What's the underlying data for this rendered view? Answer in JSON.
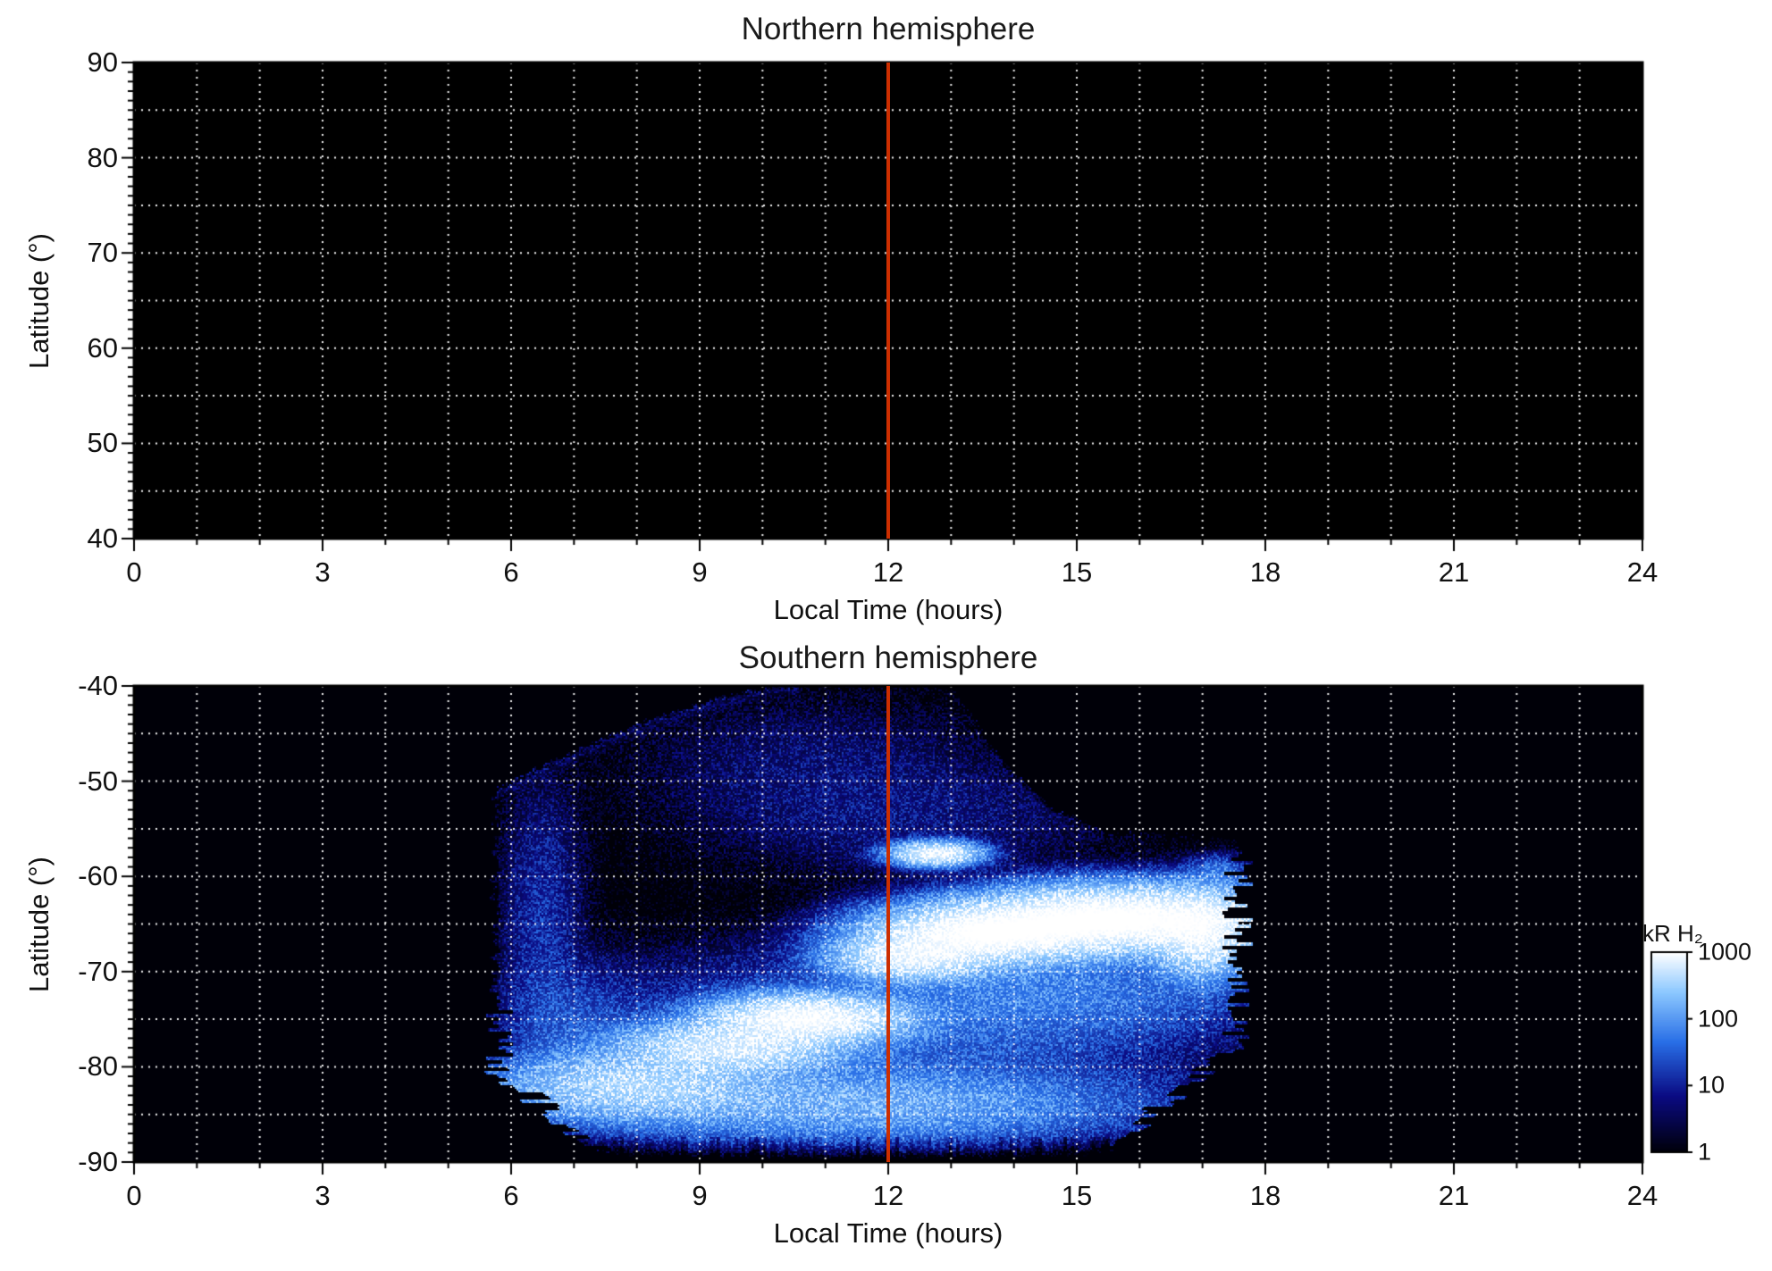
{
  "figure": {
    "background": "#ffffff",
    "panel_bg": "#000000",
    "grid_color": "#ffffff",
    "frame_color": "#000000",
    "marker_line_color": "#cc2e00",
    "text_color": "#111111"
  },
  "chart_data": [
    {
      "type": "heatmap",
      "title": "Northern hemisphere",
      "xlabel": "Local Time (hours)",
      "ylabel": "Latitude (°)",
      "xlim": [
        0,
        24
      ],
      "ylim": [
        40,
        90
      ],
      "xticks": [
        0,
        3,
        6,
        9,
        12,
        15,
        18,
        21,
        24
      ],
      "yticks": [
        40,
        50,
        60,
        70,
        80,
        90
      ],
      "x_minor_step": 1,
      "y_minor_step": 1,
      "grid": {
        "x_step": 1,
        "y_step": 5,
        "style": "dotted"
      },
      "marker_line": {
        "x": 12
      },
      "value_units": "kR H₂",
      "note": "No emission detected; entire panel at background level below 1 kR"
    },
    {
      "type": "heatmap",
      "title": "Southern hemisphere",
      "xlabel": "Local Time (hours)",
      "ylabel": "Latitude (°)",
      "xlim": [
        0,
        24
      ],
      "ylim": [
        -90,
        -40
      ],
      "xticks": [
        0,
        3,
        6,
        9,
        12,
        15,
        18,
        21,
        24
      ],
      "yticks": [
        -90,
        -80,
        -70,
        -60,
        -50,
        -40
      ],
      "x_minor_step": 1,
      "y_minor_step": 1,
      "grid": {
        "x_step": 1,
        "y_step": 5,
        "style": "dotted"
      },
      "marker_line": {
        "x": 12
      },
      "value_units": "kR H₂",
      "coverage": {
        "t_min": 5.75,
        "t_max": 17.55,
        "bottom": -90,
        "upper_boundary": [
          [
            5.75,
            -51
          ],
          [
            6.5,
            -48.5
          ],
          [
            7.5,
            -45.5
          ],
          [
            8.5,
            -43
          ],
          [
            9.5,
            -41
          ],
          [
            10.2,
            -40
          ],
          [
            13.0,
            -40
          ],
          [
            13.8,
            -48
          ],
          [
            14.6,
            -53
          ],
          [
            15.5,
            -55.5
          ],
          [
            17.55,
            -56
          ]
        ]
      },
      "features": [
        {
          "name": "dawn-band",
          "x": 6.5,
          "y": -65,
          "sx": 0.5,
          "sy": 11,
          "peak": 20
        },
        {
          "name": "dawn-haze",
          "x": 7.0,
          "y": -76,
          "sx": 0.9,
          "sy": 5,
          "peak": 35
        },
        {
          "name": "diffuse-core",
          "x": 12.0,
          "y": -76,
          "sx": 3.5,
          "sy": 6,
          "peak": 55
        },
        {
          "name": "dusk-haze",
          "x": 14.6,
          "y": -72,
          "sx": 2.4,
          "sy": 4,
          "peak": 90
        },
        {
          "name": "polar-haze",
          "x": 11.5,
          "y": -84,
          "sx": 3.2,
          "sy": 3,
          "peak": 250
        },
        {
          "name": "morning-arc-tail",
          "x": 8.0,
          "y": -82,
          "sx": 1.6,
          "sy": 2.6,
          "peak": 700
        },
        {
          "name": "morning-arc-mid",
          "x": 9.5,
          "y": -78,
          "sx": 1.3,
          "sy": 2.0,
          "peak": 1200
        },
        {
          "name": "morning-arc-head",
          "x": 10.7,
          "y": -75,
          "sx": 1.1,
          "sy": 1.8,
          "peak": 2200
        },
        {
          "name": "main-oval-west",
          "x": 12.4,
          "y": -68.5,
          "sx": 0.9,
          "sy": 1.8,
          "peak": 1500
        },
        {
          "name": "main-oval-center",
          "x": 13.6,
          "y": -66,
          "sx": 1.3,
          "sy": 2.2,
          "peak": 2600
        },
        {
          "name": "main-oval-east",
          "x": 15.6,
          "y": -64.5,
          "sx": 1.6,
          "sy": 2.4,
          "peak": 3000
        },
        {
          "name": "main-oval-edge",
          "x": 17.0,
          "y": -66,
          "sx": 0.6,
          "sy": 3.2,
          "peak": 1400
        },
        {
          "name": "detached-spot",
          "x": 12.75,
          "y": -57.6,
          "sx": 0.5,
          "sy": 0.9,
          "peak": 1600
        },
        {
          "name": "upper-speckle",
          "x": 10.8,
          "y": -48,
          "sx": 2.3,
          "sy": 5.5,
          "peak": 7
        },
        {
          "name": "mid-speckle",
          "x": 12.3,
          "y": -54,
          "sx": 2.6,
          "sy": 5,
          "peak": 9
        },
        {
          "name": "east-limb-spot",
          "x": 17.25,
          "y": -59.5,
          "sx": 0.35,
          "sy": 1.3,
          "peak": 70
        }
      ]
    }
  ],
  "colorbar": {
    "title": "kR H₂",
    "scale": "log",
    "range": [
      1,
      1000
    ],
    "tick_values": [
      1000,
      100,
      10,
      1
    ],
    "gradient_stops": [
      {
        "t": 0,
        "color": "#000008"
      },
      {
        "t": 0.28,
        "color": "#0a0a82"
      },
      {
        "t": 0.55,
        "color": "#286ee6"
      },
      {
        "t": 0.8,
        "color": "#8cc8ff"
      },
      {
        "t": 1,
        "color": "#ffffff"
      }
    ]
  }
}
